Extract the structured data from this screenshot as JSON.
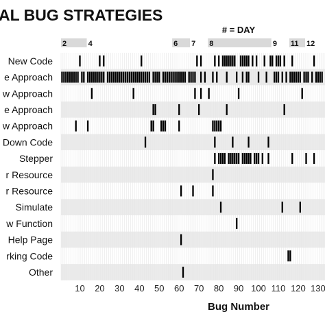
{
  "chart_data": {
    "type": "event-strip",
    "title": "AL BUG STRATEGIES",
    "xlabel": "Bug Number",
    "day_axis_title": "# = DAY",
    "xlim": [
      1,
      133
    ],
    "xticks": [
      10,
      20,
      30,
      40,
      50,
      60,
      70,
      80,
      90,
      100,
      110,
      120,
      130
    ],
    "xtick_labels": [
      "10",
      "20",
      "30",
      "40",
      "50",
      "60",
      "70",
      "80",
      "90",
      "100",
      "110",
      "120",
      "130"
    ],
    "days": [
      {
        "label": "2",
        "start": 1,
        "end": 14
      },
      {
        "label": "4",
        "start": 14,
        "end": 57
      },
      {
        "label": "6",
        "start": 57,
        "end": 66
      },
      {
        "label": "7",
        "start": 66,
        "end": 75
      },
      {
        "label": "8",
        "start": 75,
        "end": 107
      },
      {
        "label": "9",
        "start": 107,
        "end": 116
      },
      {
        "label": "11",
        "start": 116,
        "end": 124
      },
      {
        "label": "12",
        "start": 124,
        "end": 133
      }
    ],
    "rows": [
      {
        "label": "New Code",
        "events": [
          10,
          20,
          22,
          41,
          69,
          71,
          78,
          80,
          82,
          83,
          84,
          85,
          86,
          87,
          88,
          91,
          92,
          93,
          94,
          95,
          97,
          99,
          103,
          106,
          107,
          109,
          110,
          111,
          113,
          117,
          128
        ]
      },
      {
        "label": "e Approach",
        "events": [
          1,
          2,
          3,
          4,
          5,
          6,
          7,
          8,
          9,
          11,
          12,
          14,
          15,
          16,
          17,
          18,
          19,
          20,
          21,
          22,
          24,
          25,
          26,
          27,
          28,
          29,
          30,
          31,
          32,
          33,
          34,
          35,
          36,
          37,
          38,
          39,
          40,
          41,
          42,
          43,
          44,
          45,
          47,
          48,
          49,
          50,
          52,
          53,
          54,
          55,
          56,
          57,
          58,
          59,
          60,
          61,
          62,
          63,
          65,
          66,
          67,
          68,
          71,
          73,
          77,
          79,
          84,
          89,
          92,
          94,
          95,
          100,
          104,
          108,
          109,
          110,
          112,
          114,
          116,
          117,
          118,
          119,
          120,
          121,
          123,
          124,
          125,
          127,
          129,
          130,
          131,
          132
        ]
      },
      {
        "label": "w Approach",
        "events": [
          16,
          37,
          68,
          71,
          75,
          90,
          122
        ]
      },
      {
        "label": "e Approach",
        "events": [
          47,
          48,
          60,
          70,
          84,
          113
        ]
      },
      {
        "label": "w Approach",
        "events": [
          8,
          14,
          46,
          47,
          51,
          52,
          53,
          60,
          77,
          78,
          79,
          80,
          81
        ]
      },
      {
        "label": "Down Code",
        "events": [
          43,
          78,
          87,
          95,
          105
        ]
      },
      {
        "label": "Stepper",
        "events": [
          78,
          80,
          81,
          82,
          83,
          85,
          86,
          87,
          88,
          89,
          90,
          92,
          93,
          94,
          95,
          96,
          98,
          99,
          100,
          102,
          105,
          117,
          124,
          128
        ]
      },
      {
        "label": "r Resource",
        "events": [
          77
        ]
      },
      {
        "label": "r Resource",
        "events": [
          61,
          67,
          77
        ]
      },
      {
        "label": "Simulate",
        "events": [
          81,
          112,
          121
        ]
      },
      {
        "label": "w Function",
        "events": [
          89
        ]
      },
      {
        "label": "Help Page",
        "events": [
          61
        ]
      },
      {
        "label": "rking Code",
        "events": [
          115,
          116
        ]
      },
      {
        "label": "Other",
        "events": [
          62
        ]
      }
    ],
    "colors": {
      "event": "#000000",
      "band": "#ebebeb",
      "day_band": "#d9d9d9"
    }
  }
}
